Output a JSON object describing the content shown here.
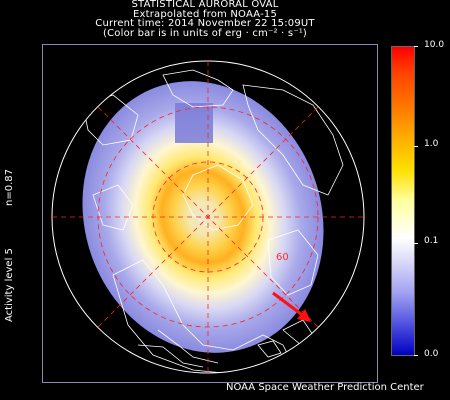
{
  "header": {
    "line1": "STATISTICAL AURORAL OVAL",
    "line2": "Extrapolated from NOAA-15",
    "line3": "Current time: 2014 November 22 15:09UT",
    "line4": "(Color bar is in units of erg · cm⁻² · s⁻¹)"
  },
  "side": {
    "n_label": "n=0.87",
    "activity_label": "Activity level 5"
  },
  "map": {
    "latitude_label": "60",
    "sun_arrow_color": "#ff1010",
    "grid_color": "#ff2020"
  },
  "colorbar": {
    "ticks": [
      "10.0",
      "1.0",
      "0.1",
      "0.0"
    ],
    "max_color": "#ff0000",
    "min_color": "#0000c0"
  },
  "footer": {
    "credit": "NOAA Space Weather Prediction Center"
  }
}
